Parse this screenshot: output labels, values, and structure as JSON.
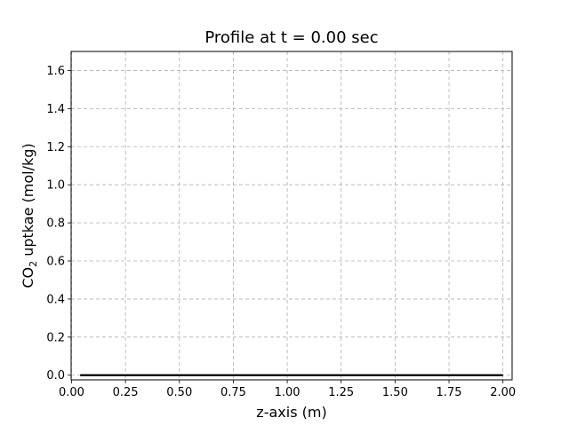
{
  "chart_data": {
    "type": "line",
    "title": "Profile at t = 0.00 sec",
    "xlabel": "z-axis (m)",
    "ylabel_main": "CO",
    "ylabel_sub": "2",
    "ylabel_rest": " uptkae (mol/kg)",
    "xlim": [
      0.0,
      2.0
    ],
    "ylim": [
      0.0,
      1.7
    ],
    "xticks": [
      0.0,
      0.25,
      0.5,
      0.75,
      1.0,
      1.25,
      1.5,
      1.75,
      2.0
    ],
    "xtick_labels": [
      "0.00",
      "0.25",
      "0.50",
      "0.75",
      "1.00",
      "1.25",
      "1.50",
      "1.75",
      "2.00"
    ],
    "yticks": [
      0.0,
      0.2,
      0.4,
      0.6,
      0.8,
      1.0,
      1.2,
      1.4,
      1.6
    ],
    "ytick_labels": [
      "0.0",
      "0.2",
      "0.4",
      "0.6",
      "0.8",
      "1.0",
      "1.2",
      "1.4",
      "1.6"
    ],
    "grid": true,
    "series": [
      {
        "x": [
          0.04,
          2.0
        ],
        "y": [
          0.0,
          0.0
        ],
        "color": "#000000"
      }
    ]
  }
}
